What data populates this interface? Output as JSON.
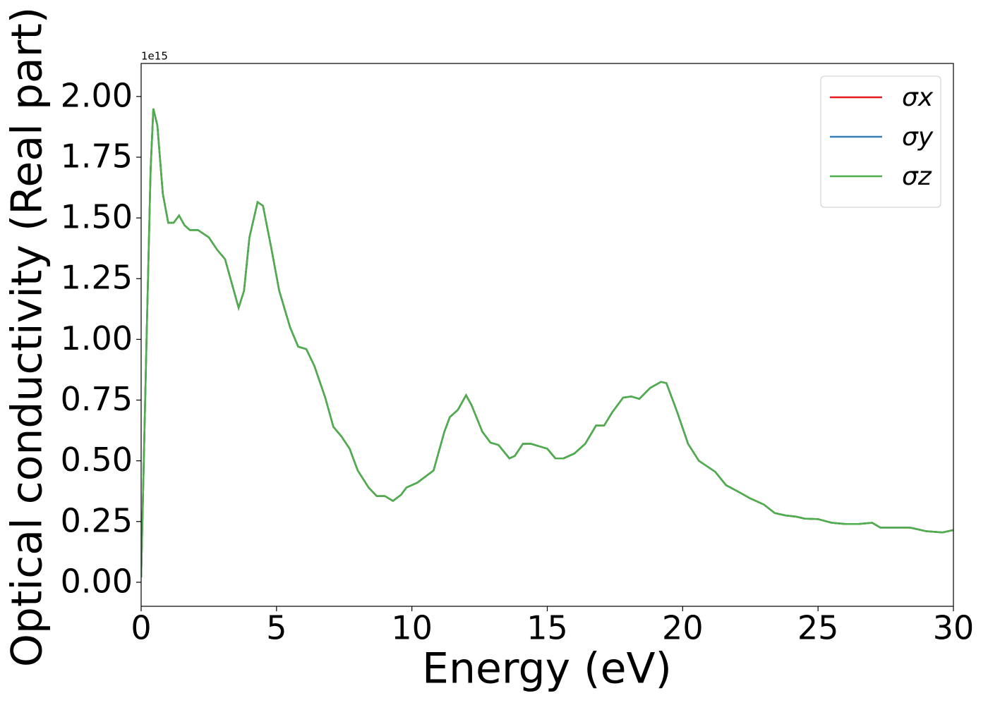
{
  "chart_data": {
    "type": "line",
    "x_label": "Energy (eV)",
    "y_label": "Optical conductivity (Real part)",
    "y_offset_label": "1e15",
    "x": [
      0,
      0.2,
      0.35,
      0.45,
      0.6,
      0.8,
      1.0,
      1.2,
      1.4,
      1.6,
      1.8,
      2.1,
      2.5,
      2.8,
      3.1,
      3.3,
      3.6,
      3.8,
      4.0,
      4.3,
      4.5,
      4.8,
      5.1,
      5.5,
      5.8,
      6.1,
      6.4,
      6.8,
      7.1,
      7.4,
      7.7,
      8.0,
      8.4,
      8.7,
      9.0,
      9.3,
      9.6,
      9.8,
      10.2,
      10.8,
      11.2,
      11.4,
      11.7,
      12.0,
      12.2,
      12.6,
      12.9,
      13.2,
      13.6,
      13.8,
      14.1,
      14.4,
      15.0,
      15.3,
      15.6,
      16.0,
      16.4,
      16.8,
      17.1,
      17.4,
      17.8,
      18.1,
      18.4,
      18.8,
      19.2,
      19.4,
      19.8,
      20.2,
      20.6,
      21.2,
      21.6,
      22.1,
      22.5,
      23.0,
      23.4,
      23.8,
      24.2,
      24.5,
      25.0,
      25.5,
      26.0,
      26.5,
      27.0,
      27.3,
      28.0,
      28.4,
      29.0,
      29.6,
      30.0
    ],
    "series": [
      {
        "name": "σx",
        "color": "#e41a1c",
        "values": [
          0.02,
          1.0,
          1.7,
          1.95,
          1.88,
          1.6,
          1.48,
          1.48,
          1.51,
          1.47,
          1.45,
          1.45,
          1.42,
          1.37,
          1.33,
          1.25,
          1.13,
          1.2,
          1.42,
          1.565,
          1.55,
          1.38,
          1.2,
          1.05,
          0.97,
          0.96,
          0.89,
          0.76,
          0.64,
          0.6,
          0.55,
          0.46,
          0.39,
          0.355,
          0.355,
          0.335,
          0.36,
          0.39,
          0.41,
          0.46,
          0.62,
          0.68,
          0.71,
          0.77,
          0.73,
          0.62,
          0.575,
          0.565,
          0.51,
          0.52,
          0.57,
          0.57,
          0.55,
          0.51,
          0.51,
          0.53,
          0.57,
          0.645,
          0.645,
          0.7,
          0.76,
          0.765,
          0.755,
          0.8,
          0.825,
          0.82,
          0.7,
          0.57,
          0.5,
          0.455,
          0.4,
          0.37,
          0.345,
          0.32,
          0.285,
          0.275,
          0.27,
          0.262,
          0.26,
          0.245,
          0.24,
          0.24,
          0.245,
          0.225,
          0.225,
          0.225,
          0.21,
          0.205,
          0.215
        ]
      },
      {
        "name": "σy",
        "color": "#377eb8",
        "values": [
          0.02,
          1.0,
          1.7,
          1.95,
          1.88,
          1.6,
          1.48,
          1.48,
          1.51,
          1.47,
          1.45,
          1.45,
          1.42,
          1.37,
          1.33,
          1.25,
          1.13,
          1.2,
          1.42,
          1.565,
          1.55,
          1.38,
          1.2,
          1.05,
          0.97,
          0.96,
          0.89,
          0.76,
          0.64,
          0.6,
          0.55,
          0.46,
          0.39,
          0.355,
          0.355,
          0.335,
          0.36,
          0.39,
          0.41,
          0.46,
          0.62,
          0.68,
          0.71,
          0.77,
          0.73,
          0.62,
          0.575,
          0.565,
          0.51,
          0.52,
          0.57,
          0.57,
          0.55,
          0.51,
          0.51,
          0.53,
          0.57,
          0.645,
          0.645,
          0.7,
          0.76,
          0.765,
          0.755,
          0.8,
          0.825,
          0.82,
          0.7,
          0.57,
          0.5,
          0.455,
          0.4,
          0.37,
          0.345,
          0.32,
          0.285,
          0.275,
          0.27,
          0.262,
          0.26,
          0.245,
          0.24,
          0.24,
          0.245,
          0.225,
          0.225,
          0.225,
          0.21,
          0.205,
          0.215
        ]
      },
      {
        "name": "σz",
        "color": "#4daf4a",
        "values": [
          0.02,
          1.0,
          1.7,
          1.95,
          1.88,
          1.6,
          1.48,
          1.48,
          1.51,
          1.47,
          1.45,
          1.45,
          1.42,
          1.37,
          1.33,
          1.25,
          1.13,
          1.2,
          1.42,
          1.565,
          1.55,
          1.38,
          1.2,
          1.05,
          0.97,
          0.96,
          0.89,
          0.76,
          0.64,
          0.6,
          0.55,
          0.46,
          0.39,
          0.355,
          0.355,
          0.335,
          0.36,
          0.39,
          0.41,
          0.46,
          0.62,
          0.68,
          0.71,
          0.77,
          0.73,
          0.62,
          0.575,
          0.565,
          0.51,
          0.52,
          0.57,
          0.57,
          0.55,
          0.51,
          0.51,
          0.53,
          0.57,
          0.645,
          0.645,
          0.7,
          0.76,
          0.765,
          0.755,
          0.8,
          0.825,
          0.82,
          0.7,
          0.57,
          0.5,
          0.455,
          0.4,
          0.37,
          0.345,
          0.32,
          0.285,
          0.275,
          0.27,
          0.262,
          0.26,
          0.245,
          0.24,
          0.24,
          0.245,
          0.225,
          0.225,
          0.225,
          0.21,
          0.205,
          0.215
        ]
      }
    ],
    "xlim": [
      0,
      30
    ],
    "xticks": [
      0,
      5,
      10,
      15,
      20,
      25,
      30
    ],
    "ylim": [
      -0.099,
      2.136
    ],
    "yticks": [
      {
        "value": 0,
        "label": "0.00"
      },
      0.25,
      {
        "value": 0.5,
        "label": "0.50"
      },
      0.75,
      {
        "value": 1,
        "label": "1.00"
      },
      1.25,
      {
        "value": 1.5,
        "label": "1.50"
      },
      1.75,
      {
        "value": 2,
        "label": "2.00"
      }
    ],
    "grid": false,
    "legend": "upper right"
  }
}
